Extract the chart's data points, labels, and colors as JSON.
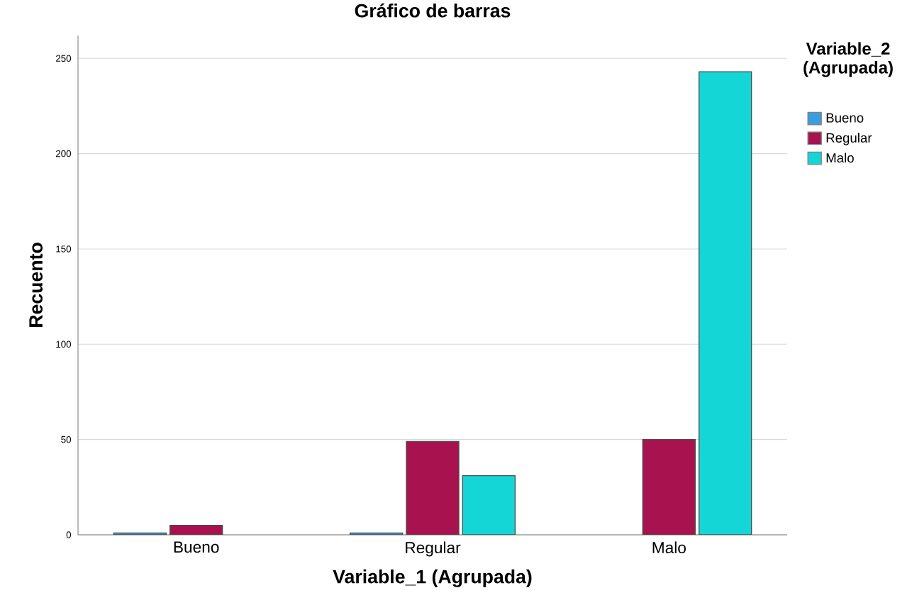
{
  "chart_data": {
    "type": "bar",
    "title": "Gráfico de barras",
    "xlabel": "Variable_1 (Agrupada)",
    "ylabel": "Recuento",
    "legend_title": "Variable_2 (Agrupada)",
    "categories": [
      "Bueno",
      "Regular",
      "Malo"
    ],
    "series": [
      {
        "name": "Bueno",
        "color": "#3a9de0",
        "values": [
          1,
          1,
          null
        ]
      },
      {
        "name": "Regular",
        "color": "#a8124f",
        "values": [
          5,
          49,
          50
        ]
      },
      {
        "name": "Malo",
        "color": "#14d6d6",
        "values": [
          null,
          31,
          243
        ]
      }
    ],
    "ylim": [
      0,
      262
    ],
    "yticks": [
      0,
      50,
      100,
      150,
      200,
      250
    ],
    "grid": "y",
    "legend": "top right"
  }
}
